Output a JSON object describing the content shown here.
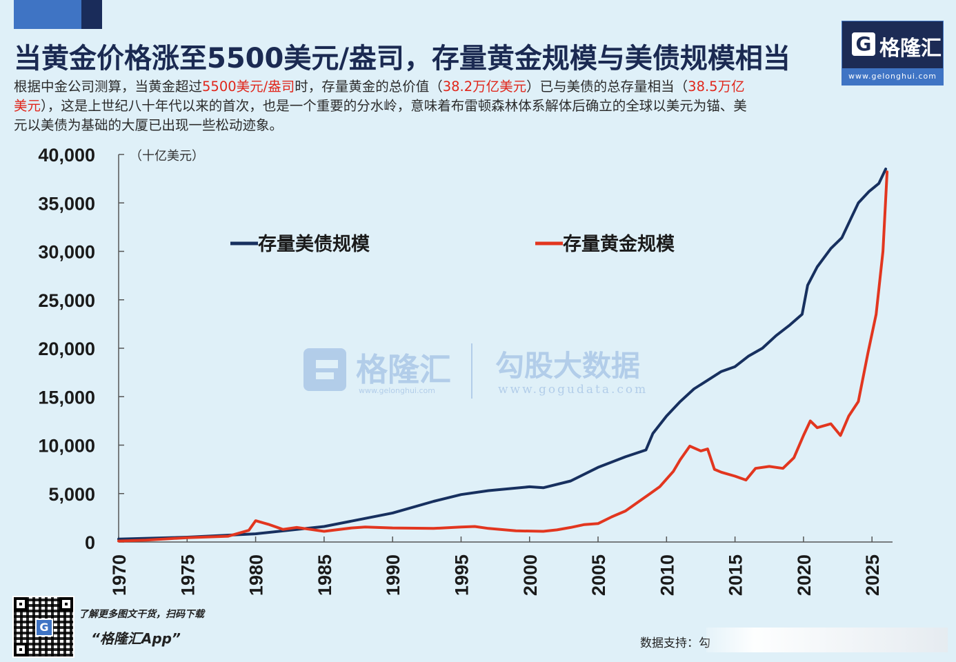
{
  "header": {
    "title": "当黄金价格涨至5500美元/盎司，存量黄金规模与美债规模相当",
    "desc_parts": [
      {
        "text": "根据中金公司测算，当黄金超过",
        "hl": false
      },
      {
        "text": "5500美元/盎司",
        "hl": true
      },
      {
        "text": "时，存量黄金的总价值（",
        "hl": false
      },
      {
        "text": "38.2万亿美元",
        "hl": true
      },
      {
        "text": "）已与美债的总存量相当（",
        "hl": false
      },
      {
        "text": "38.5万亿美元",
        "hl": true
      },
      {
        "text": "），这是上世纪八十年代以来的首次，也是一个重要的分水岭，意味着布雷顿森林体系解体后确立的全球以美元为锚、美元以美债为基础的大厦已出现一些松动迹象。",
        "hl": false
      }
    ]
  },
  "logo": {
    "icon_name": "gelonghui-g-icon",
    "letter": "G",
    "name": "格隆汇",
    "url": "www.gelonghui.com"
  },
  "watermark": {
    "brand": "格隆汇",
    "brand_url": "www.gelonghui.com",
    "data_brand": "勾股大数据",
    "data_url": "www.gogudata.com"
  },
  "colors": {
    "treasury": "#17305f",
    "gold": "#e2361f",
    "highlight": "#e0261b",
    "background": "#dff0f8"
  },
  "chart_data": {
    "type": "line",
    "title": "",
    "unit_label": "（十亿美元）",
    "xlabel": "",
    "ylabel": "",
    "xlim": [
      1970,
      2026.5
    ],
    "ylim": [
      0,
      40000
    ],
    "x_ticks": [
      1970,
      1975,
      1980,
      1985,
      1990,
      1995,
      2000,
      2005,
      2010,
      2015,
      2020,
      2025
    ],
    "y_ticks": [
      {
        "v": 0,
        "label": "0"
      },
      {
        "v": 5000,
        "label": "5,000"
      },
      {
        "v": 10000,
        "label": "10,000"
      },
      {
        "v": 15000,
        "label": "15,000"
      },
      {
        "v": 20000,
        "label": "20,000"
      },
      {
        "v": 25000,
        "label": "25,000"
      },
      {
        "v": 30000,
        "label": "30,000"
      },
      {
        "v": 35000,
        "label": "35,000"
      },
      {
        "v": 40000,
        "label": "40,000"
      }
    ],
    "grid": false,
    "legend_position": "top",
    "series": [
      {
        "name": "存量美债规模",
        "color": "#17305f",
        "points": [
          [
            1970,
            300
          ],
          [
            1975,
            500
          ],
          [
            1980,
            850
          ],
          [
            1985,
            1600
          ],
          [
            1990,
            3000
          ],
          [
            1993,
            4200
          ],
          [
            1995,
            4900
          ],
          [
            1997,
            5300
          ],
          [
            2000,
            5700
          ],
          [
            2001,
            5600
          ],
          [
            2003,
            6300
          ],
          [
            2005,
            7700
          ],
          [
            2007,
            8800
          ],
          [
            2008.5,
            9500
          ],
          [
            2009,
            11200
          ],
          [
            2010,
            13000
          ],
          [
            2011,
            14500
          ],
          [
            2012,
            15800
          ],
          [
            2013,
            16700
          ],
          [
            2014,
            17600
          ],
          [
            2015,
            18100
          ],
          [
            2016,
            19200
          ],
          [
            2017,
            20000
          ],
          [
            2018,
            21300
          ],
          [
            2019,
            22400
          ],
          [
            2019.9,
            23500
          ],
          [
            2020.3,
            26500
          ],
          [
            2021,
            28400
          ],
          [
            2022,
            30300
          ],
          [
            2022.8,
            31400
          ],
          [
            2023.5,
            33500
          ],
          [
            2024,
            35000
          ],
          [
            2024.8,
            36200
          ],
          [
            2025.5,
            37000
          ],
          [
            2026,
            38500
          ]
        ]
      },
      {
        "name": "存量黄金规模",
        "color": "#e2361f",
        "points": [
          [
            1970,
            100
          ],
          [
            1972,
            200
          ],
          [
            1975,
            450
          ],
          [
            1978,
            600
          ],
          [
            1979.5,
            1200
          ],
          [
            1980,
            2200
          ],
          [
            1981,
            1800
          ],
          [
            1982,
            1300
          ],
          [
            1983,
            1500
          ],
          [
            1984,
            1300
          ],
          [
            1985,
            1100
          ],
          [
            1987,
            1450
          ],
          [
            1988,
            1550
          ],
          [
            1990,
            1450
          ],
          [
            1993,
            1400
          ],
          [
            1995,
            1550
          ],
          [
            1996,
            1600
          ],
          [
            1997,
            1400
          ],
          [
            1999,
            1150
          ],
          [
            2001,
            1100
          ],
          [
            2002,
            1250
          ],
          [
            2003,
            1500
          ],
          [
            2004,
            1800
          ],
          [
            2005,
            1900
          ],
          [
            2006,
            2600
          ],
          [
            2007,
            3200
          ],
          [
            2008,
            4200
          ],
          [
            2008.7,
            4900
          ],
          [
            2009.5,
            5700
          ],
          [
            2010.5,
            7300
          ],
          [
            2011,
            8500
          ],
          [
            2011.7,
            9900
          ],
          [
            2012.5,
            9400
          ],
          [
            2013,
            9600
          ],
          [
            2013.5,
            7500
          ],
          [
            2014,
            7200
          ],
          [
            2015,
            6800
          ],
          [
            2015.8,
            6400
          ],
          [
            2016.5,
            7600
          ],
          [
            2017.5,
            7800
          ],
          [
            2018.5,
            7600
          ],
          [
            2019.3,
            8700
          ],
          [
            2020,
            11000
          ],
          [
            2020.5,
            12500
          ],
          [
            2021,
            11800
          ],
          [
            2022,
            12200
          ],
          [
            2022.7,
            11000
          ],
          [
            2023.3,
            13000
          ],
          [
            2024,
            14500
          ],
          [
            2024.7,
            19500
          ],
          [
            2025.3,
            23500
          ],
          [
            2025.8,
            30000
          ],
          [
            2026.1,
            38200
          ]
        ]
      }
    ]
  },
  "footer": {
    "qr_icon_name": "qr-code-icon",
    "qr_tagline": "了解更多图文干货，扫码下载",
    "qr_app": "“格隆汇App”",
    "source_label": "数据支持：勾"
  }
}
